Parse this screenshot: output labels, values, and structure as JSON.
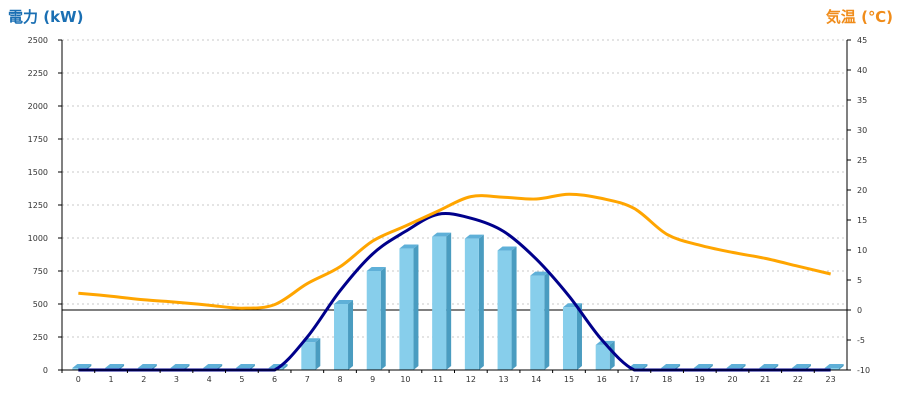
{
  "chart_data": {
    "type": "bar+line",
    "left_axis_title": "電力 (kW)",
    "right_axis_title": "気温 (℃)",
    "colors": {
      "left_axis_title": "#1a6fb3",
      "right_axis_title": "#f08c1a",
      "bar_front": "#87ceeb",
      "bar_side": "#4a9cc0",
      "bar_top": "#5fb0d8",
      "power_curve": "#00008b",
      "temperature_line": "#ffa500",
      "grid": "#c8c8c8"
    },
    "categories": [
      "0",
      "1",
      "2",
      "3",
      "4",
      "5",
      "6",
      "7",
      "8",
      "9",
      "10",
      "11",
      "12",
      "13",
      "14",
      "15",
      "16",
      "17",
      "18",
      "19",
      "20",
      "21",
      "22",
      "23"
    ],
    "left_axis": {
      "min": 0,
      "max": 2500,
      "ticks": [
        0,
        250,
        500,
        750,
        1000,
        1250,
        1500,
        1750,
        2000,
        2250,
        2500
      ]
    },
    "right_axis": {
      "min": -10,
      "max": 45,
      "ticks": [
        -10,
        -5,
        0,
        5,
        10,
        15,
        20,
        25,
        30,
        35,
        40,
        45
      ]
    },
    "grid": true,
    "series": [
      {
        "kind": "bar",
        "axis": "left",
        "values": [
          0,
          0,
          0,
          0,
          0,
          0,
          0,
          210,
          500,
          750,
          920,
          1010,
          995,
          905,
          715,
          475,
          190,
          0,
          0,
          0,
          0,
          0,
          0,
          0
        ]
      },
      {
        "kind": "curve",
        "axis": "left",
        "values": [
          0,
          0,
          0,
          0,
          0,
          0,
          0,
          250,
          600,
          880,
          1050,
          1180,
          1150,
          1050,
          840,
          560,
          230,
          0,
          0,
          0,
          0,
          0,
          0,
          0
        ]
      },
      {
        "kind": "line",
        "axis": "right",
        "values": [
          2.8,
          2.3,
          1.7,
          1.3,
          0.8,
          0.3,
          0.9,
          4.4,
          7.2,
          11.5,
          14.0,
          16.5,
          18.9,
          18.8,
          18.5,
          19.3,
          18.6,
          16.9,
          12.6,
          10.8,
          9.6,
          8.6,
          7.3,
          6.0
        ]
      }
    ]
  }
}
